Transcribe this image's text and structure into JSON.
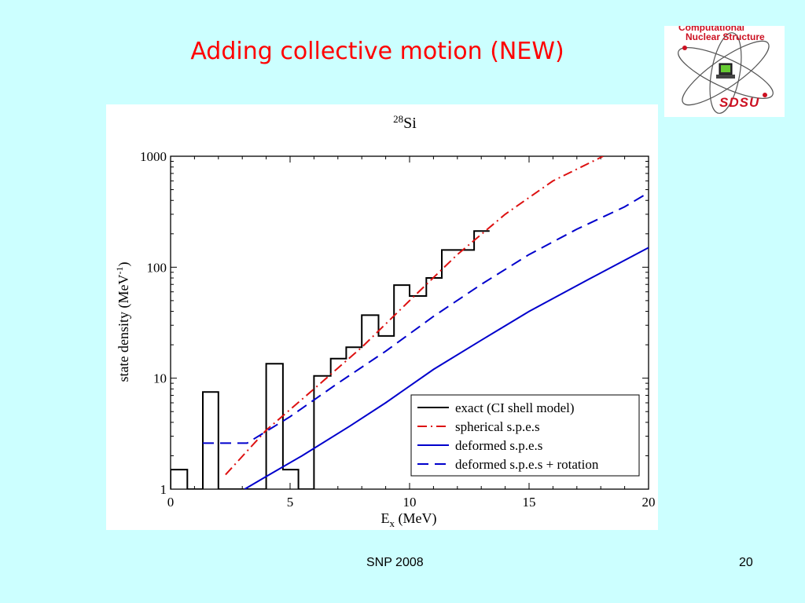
{
  "slide": {
    "title": "Adding collective motion (NEW)",
    "footer_left": "SNP 2008",
    "footer_right": "20"
  },
  "logo": {
    "line1": "Computational",
    "line2": "Nuclear Structure",
    "brand": "SDSU",
    "icon": "atom-with-computer-icon"
  },
  "chart_data": {
    "type": "line",
    "title_mass": "28",
    "title_element": "Si",
    "xlabel_main": "E",
    "xlabel_sub": "x",
    "xlabel_unit": " (MeV)",
    "ylabel_main": "state density (MeV",
    "ylabel_sup": "-1",
    "ylabel_end": ")",
    "y_scale": "log",
    "xlim": [
      0,
      20
    ],
    "ylim": [
      1,
      1000
    ],
    "x_ticks": [
      0,
      5,
      10,
      15,
      20
    ],
    "x_tick_labels": [
      "0",
      "5",
      "10",
      "15",
      "20"
    ],
    "y_ticks": [
      1,
      10,
      100,
      1000
    ],
    "y_tick_labels": [
      "1",
      "10",
      "100",
      "1000"
    ],
    "grid": false,
    "legend_position": "bottom-right",
    "series": [
      {
        "name": "exact (CI shell model)",
        "style": "step",
        "color": "#000000",
        "points": [
          [
            0,
            1
          ],
          [
            0,
            1.5
          ],
          [
            0.7,
            1.5
          ],
          [
            0.7,
            1
          ],
          [
            1.35,
            1
          ],
          [
            1.35,
            7.5
          ],
          [
            2.0,
            7.5
          ],
          [
            2.0,
            1
          ],
          [
            4.0,
            1
          ],
          [
            4.0,
            13.5
          ],
          [
            4.7,
            13.5
          ],
          [
            4.7,
            1.5
          ],
          [
            5.35,
            1.5
          ],
          [
            5.35,
            1
          ],
          [
            6.0,
            1
          ],
          [
            6.0,
            10.5
          ],
          [
            6.7,
            10.5
          ],
          [
            6.7,
            15
          ],
          [
            7.35,
            15
          ],
          [
            7.35,
            19
          ],
          [
            8.0,
            19
          ],
          [
            8.0,
            37
          ],
          [
            8.7,
            37
          ],
          [
            8.7,
            24
          ],
          [
            9.35,
            24
          ],
          [
            9.35,
            69
          ],
          [
            10.0,
            69
          ],
          [
            10.0,
            55
          ],
          [
            10.7,
            55
          ],
          [
            10.7,
            80
          ],
          [
            11.35,
            80
          ],
          [
            11.35,
            143
          ],
          [
            12.7,
            143
          ],
          [
            12.7,
            212
          ],
          [
            13.35,
            212
          ]
        ]
      },
      {
        "name": "spherical s.p.e.s",
        "style": "dash-dot",
        "color": "#dd1111",
        "points": [
          [
            2.3,
            1.35
          ],
          [
            4,
            3.4
          ],
          [
            6,
            8
          ],
          [
            8,
            19
          ],
          [
            10,
            50
          ],
          [
            12,
            130
          ],
          [
            14,
            300
          ],
          [
            16,
            600
          ],
          [
            18.1,
            1000
          ]
        ]
      },
      {
        "name": "deformed s.p.e.s",
        "style": "solid",
        "color": "#0000cc",
        "points": [
          [
            3.1,
            1.0
          ],
          [
            4,
            1.3
          ],
          [
            5.5,
            2.0
          ],
          [
            7.5,
            3.7
          ],
          [
            9,
            6
          ],
          [
            11,
            12
          ],
          [
            13,
            22
          ],
          [
            15,
            40
          ],
          [
            17.5,
            78
          ],
          [
            20,
            150
          ]
        ]
      },
      {
        "name": "deformed s.p.e.s + rotation",
        "style": "dashed",
        "color": "#0000cc",
        "points": [
          [
            1.35,
            2.6
          ],
          [
            3.2,
            2.6
          ],
          [
            5,
            4.5
          ],
          [
            7,
            9
          ],
          [
            9,
            17.5
          ],
          [
            11,
            36
          ],
          [
            13,
            70
          ],
          [
            15,
            130
          ],
          [
            17,
            220
          ],
          [
            19,
            350
          ],
          [
            20,
            470
          ]
        ]
      }
    ]
  }
}
